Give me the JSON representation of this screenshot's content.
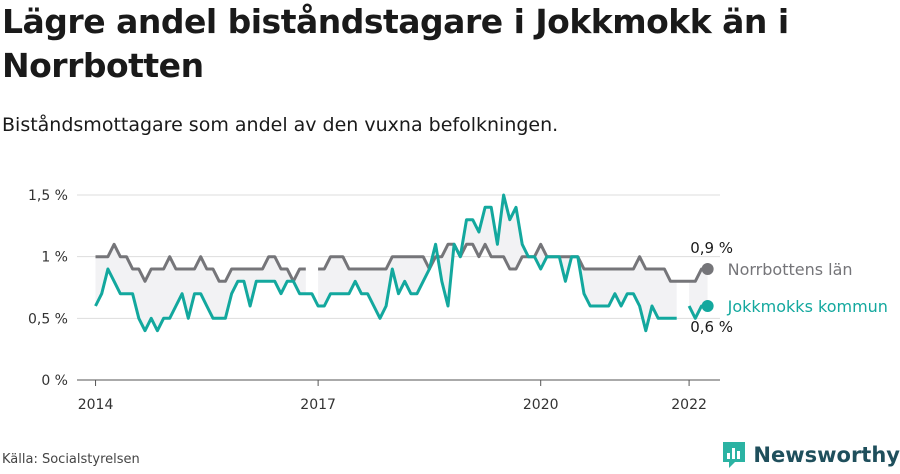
{
  "header": {
    "title": "Lägre andel biståndstagare i Jokkmokk än i Norrbotten",
    "subtitle": "Biståndsmottagare som andel av den vuxna befolkningen."
  },
  "footer": {
    "source": "Källa: Socialstyrelsen",
    "brand": "Newsworthy"
  },
  "colors": {
    "norrbotten": "#757579",
    "jokkmokk": "#13a89e",
    "band": "#f2f2f4",
    "grid": "#dddddd",
    "brand": "#1f4f5c",
    "brand_icon": "#2bb3a3"
  },
  "chart_data": {
    "type": "line",
    "title": "Lägre andel biståndstagare i Jokkmokk än i Norrbotten",
    "subtitle": "Biståndsmottagare som andel av den vuxna befolkningen.",
    "x_start": "2014-01",
    "x_step": "month",
    "xlim": [
      "2013-10",
      "2022-06"
    ],
    "x_ticks": [
      {
        "date": "2014-01",
        "label": "2014"
      },
      {
        "date": "2017-01",
        "label": "2017"
      },
      {
        "date": "2020-01",
        "label": "2020"
      },
      {
        "date": "2022-01",
        "label": "2022"
      }
    ],
    "ylim": [
      0,
      1.5
    ],
    "y_ticks": [
      {
        "value": 0,
        "label": "0 %"
      },
      {
        "value": 0.5,
        "label": "0,5 %"
      },
      {
        "value": 1,
        "label": "1 %"
      },
      {
        "value": 1.5,
        "label": "1,5 %"
      }
    ],
    "grid": true,
    "band_between_series": true,
    "series": [
      {
        "name": "Norrbottens län",
        "end_label": "0,9 %",
        "values": [
          1,
          1,
          1,
          1.1,
          1,
          1,
          0.9,
          0.9,
          0.8,
          0.9,
          0.9,
          0.9,
          1,
          0.9,
          0.9,
          0.9,
          0.9,
          1,
          0.9,
          0.9,
          0.8,
          0.8,
          0.9,
          0.9,
          0.9,
          0.9,
          0.9,
          0.9,
          1,
          1,
          0.9,
          0.9,
          0.8,
          0.9,
          0.9,
          null,
          0.9,
          0.9,
          1,
          1,
          1,
          0.9,
          0.9,
          0.9,
          0.9,
          0.9,
          0.9,
          0.9,
          1,
          1,
          1,
          1,
          1,
          1,
          0.9,
          1,
          1,
          1.1,
          1.1,
          1,
          1.1,
          1.1,
          1,
          1.1,
          1,
          1,
          1,
          0.9,
          0.9,
          1,
          1,
          1,
          1.1,
          1,
          1,
          1,
          1,
          1,
          1,
          0.9,
          0.9,
          0.9,
          0.9,
          0.9,
          0.9,
          0.9,
          0.9,
          0.9,
          1,
          0.9,
          0.9,
          0.9,
          0.9,
          0.8,
          0.8,
          0.8,
          0.8,
          0.8,
          0.9,
          0.9
        ]
      },
      {
        "name": "Jokkmokks kommun",
        "end_label": "0,6 %",
        "values": [
          0.6,
          0.7,
          0.9,
          0.8,
          0.7,
          0.7,
          0.7,
          0.5,
          0.4,
          0.5,
          0.4,
          0.5,
          0.5,
          0.6,
          0.7,
          0.5,
          0.7,
          0.7,
          0.6,
          0.5,
          0.5,
          0.5,
          0.7,
          0.8,
          0.8,
          0.6,
          0.8,
          0.8,
          0.8,
          0.8,
          0.7,
          0.8,
          0.8,
          0.7,
          0.7,
          0.7,
          0.6,
          0.6,
          0.7,
          0.7,
          0.7,
          0.7,
          0.8,
          0.7,
          0.7,
          0.6,
          0.5,
          0.6,
          0.9,
          0.7,
          0.8,
          0.7,
          0.7,
          0.8,
          0.9,
          1.1,
          0.8,
          0.6,
          1.1,
          1,
          1.3,
          1.3,
          1.2,
          1.4,
          1.4,
          1.1,
          1.5,
          1.3,
          1.4,
          1.1,
          1,
          1,
          0.9,
          1,
          1,
          1,
          0.8,
          1,
          1,
          0.7,
          0.6,
          0.6,
          0.6,
          0.6,
          0.7,
          0.6,
          0.7,
          0.7,
          0.6,
          0.4,
          0.6,
          0.5,
          0.5,
          0.5,
          0.5,
          null,
          0.6,
          0.5,
          0.6,
          0.6
        ]
      }
    ]
  }
}
